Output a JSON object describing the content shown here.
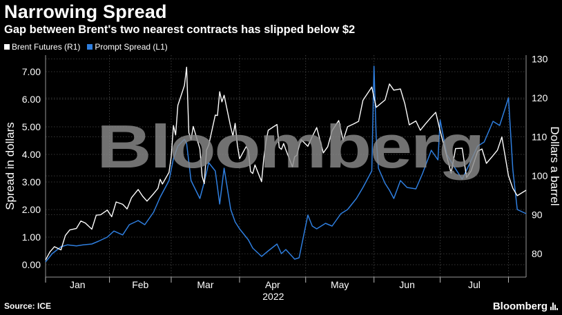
{
  "header": {
    "title": "Narrowing Spread",
    "subtitle": "Gap between Brent's two nearest contracts has slipped below $2"
  },
  "footer": {
    "source": "Source: ICE",
    "brand": "Bloomberg"
  },
  "colors": {
    "background": "#000000",
    "brent": "#ffffff",
    "spread": "#2f7fe0",
    "grid": "#4a4a4a",
    "watermark": "#8a8a8a"
  },
  "icons": {
    "brand": "bar-chart-icon"
  },
  "chart_data": {
    "type": "line",
    "watermark": "Bloomberg",
    "legend_placement": "top-left",
    "grid": true,
    "x_axis": {
      "ticks": [
        "Jan",
        "Feb",
        "Mar",
        "Apr",
        "May",
        "Jun",
        "Jul"
      ],
      "year_label": "2022",
      "range": [
        "2022-01-03",
        "2022-08-09"
      ]
    },
    "y_left": {
      "label": "Spread in dollars",
      "ticks": [
        "0.00",
        "1.00",
        "2.00",
        "3.00",
        "4.00",
        "5.00",
        "6.00",
        "7.00"
      ],
      "range": [
        -0.45,
        7.6
      ]
    },
    "y_right": {
      "label": "Dollars a barrel",
      "ticks": [
        "80",
        "90",
        "100",
        "110",
        "120",
        "130"
      ],
      "range": [
        74,
        131
      ]
    },
    "series": [
      {
        "name": "Brent Futures (R1)",
        "axis": "right",
        "points": [
          [
            "2022-01-03",
            78.4
          ],
          [
            "2022-01-05",
            80.5
          ],
          [
            "2022-01-07",
            81.8
          ],
          [
            "2022-01-10",
            81.0
          ],
          [
            "2022-01-12",
            84.7
          ],
          [
            "2022-01-14",
            86.1
          ],
          [
            "2022-01-17",
            86.5
          ],
          [
            "2022-01-19",
            88.4
          ],
          [
            "2022-01-21",
            87.9
          ],
          [
            "2022-01-24",
            86.3
          ],
          [
            "2022-01-26",
            89.9
          ],
          [
            "2022-01-28",
            90.0
          ],
          [
            "2022-01-31",
            91.2
          ],
          [
            "2022-02-02",
            89.5
          ],
          [
            "2022-02-04",
            93.3
          ],
          [
            "2022-02-07",
            92.7
          ],
          [
            "2022-02-09",
            91.5
          ],
          [
            "2022-02-11",
            94.4
          ],
          [
            "2022-02-14",
            96.5
          ],
          [
            "2022-02-16",
            94.8
          ],
          [
            "2022-02-18",
            93.5
          ],
          [
            "2022-02-21",
            95.4
          ],
          [
            "2022-02-23",
            96.8
          ],
          [
            "2022-02-24",
            99.1
          ],
          [
            "2022-02-25",
            97.9
          ],
          [
            "2022-02-28",
            100.9
          ],
          [
            "2022-03-01",
            104.9
          ],
          [
            "2022-03-02",
            112.9
          ],
          [
            "2022-03-03",
            110.5
          ],
          [
            "2022-03-04",
            118.1
          ],
          [
            "2022-03-07",
            123.2
          ],
          [
            "2022-03-08",
            127.9
          ],
          [
            "2022-03-09",
            111.1
          ],
          [
            "2022-03-10",
            109.3
          ],
          [
            "2022-03-11",
            112.7
          ],
          [
            "2022-03-14",
            106.9
          ],
          [
            "2022-03-15",
            99.9
          ],
          [
            "2022-03-16",
            98.0
          ],
          [
            "2022-03-17",
            106.6
          ],
          [
            "2022-03-18",
            107.9
          ],
          [
            "2022-03-21",
            115.6
          ],
          [
            "2022-03-22",
            115.5
          ],
          [
            "2022-03-23",
            121.6
          ],
          [
            "2022-03-24",
            119.0
          ],
          [
            "2022-03-25",
            120.7
          ],
          [
            "2022-03-28",
            112.5
          ],
          [
            "2022-03-29",
            110.2
          ],
          [
            "2022-03-30",
            113.5
          ],
          [
            "2022-03-31",
            107.9
          ],
          [
            "2022-04-01",
            104.4
          ],
          [
            "2022-04-04",
            107.5
          ],
          [
            "2022-04-05",
            106.6
          ],
          [
            "2022-04-06",
            101.1
          ],
          [
            "2022-04-07",
            100.6
          ],
          [
            "2022-04-08",
            102.8
          ],
          [
            "2022-04-11",
            98.5
          ],
          [
            "2022-04-12",
            104.6
          ],
          [
            "2022-04-13",
            108.8
          ],
          [
            "2022-04-14",
            111.7
          ],
          [
            "2022-04-18",
            113.2
          ],
          [
            "2022-04-19",
            107.3
          ],
          [
            "2022-04-20",
            106.8
          ],
          [
            "2022-04-21",
            108.3
          ],
          [
            "2022-04-22",
            106.7
          ],
          [
            "2022-04-25",
            102.3
          ],
          [
            "2022-04-26",
            104.9
          ],
          [
            "2022-04-27",
            105.3
          ],
          [
            "2022-04-28",
            107.6
          ],
          [
            "2022-04-29",
            109.3
          ],
          [
            "2022-05-02",
            107.6
          ],
          [
            "2022-05-04",
            110.1
          ],
          [
            "2022-05-06",
            112.4
          ],
          [
            "2022-05-09",
            105.9
          ],
          [
            "2022-05-11",
            107.5
          ],
          [
            "2022-05-13",
            111.6
          ],
          [
            "2022-05-16",
            114.2
          ],
          [
            "2022-05-18",
            109.1
          ],
          [
            "2022-05-20",
            112.6
          ],
          [
            "2022-05-23",
            113.4
          ],
          [
            "2022-05-25",
            114.0
          ],
          [
            "2022-05-27",
            119.4
          ],
          [
            "2022-05-31",
            122.8
          ],
          [
            "2022-06-02",
            117.6
          ],
          [
            "2022-06-06",
            119.5
          ],
          [
            "2022-06-08",
            123.6
          ],
          [
            "2022-06-10",
            122.0
          ],
          [
            "2022-06-13",
            122.3
          ],
          [
            "2022-06-15",
            118.5
          ],
          [
            "2022-06-17",
            113.1
          ],
          [
            "2022-06-20",
            114.1
          ],
          [
            "2022-06-22",
            111.7
          ],
          [
            "2022-06-24",
            113.1
          ],
          [
            "2022-06-27",
            115.1
          ],
          [
            "2022-06-29",
            116.3
          ],
          [
            "2022-07-01",
            111.6
          ],
          [
            "2022-07-05",
            102.8
          ],
          [
            "2022-07-06",
            100.7
          ],
          [
            "2022-07-08",
            107.0
          ],
          [
            "2022-07-11",
            107.1
          ],
          [
            "2022-07-13",
            99.6
          ],
          [
            "2022-07-15",
            101.2
          ],
          [
            "2022-07-18",
            106.3
          ],
          [
            "2022-07-20",
            106.9
          ],
          [
            "2022-07-22",
            103.2
          ],
          [
            "2022-07-25",
            105.2
          ],
          [
            "2022-07-27",
            106.6
          ],
          [
            "2022-07-29",
            110.0
          ],
          [
            "2022-08-01",
            100.0
          ],
          [
            "2022-08-03",
            96.8
          ],
          [
            "2022-08-05",
            94.9
          ],
          [
            "2022-08-09",
            96.3
          ]
        ]
      },
      {
        "name": "Prompt Spread (L1)",
        "axis": "left",
        "points": [
          [
            "2022-01-03",
            0.1
          ],
          [
            "2022-01-06",
            0.4
          ],
          [
            "2022-01-10",
            0.65
          ],
          [
            "2022-01-13",
            0.72
          ],
          [
            "2022-01-17",
            0.68
          ],
          [
            "2022-01-20",
            0.72
          ],
          [
            "2022-01-24",
            0.75
          ],
          [
            "2022-01-27",
            0.85
          ],
          [
            "2022-01-31",
            1.0
          ],
          [
            "2022-02-03",
            1.22
          ],
          [
            "2022-02-07",
            1.08
          ],
          [
            "2022-02-10",
            1.45
          ],
          [
            "2022-02-14",
            1.6
          ],
          [
            "2022-02-17",
            1.45
          ],
          [
            "2022-02-21",
            1.9
          ],
          [
            "2022-02-24",
            2.45
          ],
          [
            "2022-02-28",
            3.05
          ],
          [
            "2022-03-02",
            3.85
          ],
          [
            "2022-03-04",
            4.3
          ],
          [
            "2022-03-07",
            4.55
          ],
          [
            "2022-03-08",
            4.4
          ],
          [
            "2022-03-10",
            3.05
          ],
          [
            "2022-03-14",
            2.4
          ],
          [
            "2022-03-16",
            3.0
          ],
          [
            "2022-03-18",
            3.7
          ],
          [
            "2022-03-21",
            3.4
          ],
          [
            "2022-03-23",
            2.2
          ],
          [
            "2022-03-25",
            3.5
          ],
          [
            "2022-03-28",
            2.0
          ],
          [
            "2022-03-30",
            1.55
          ],
          [
            "2022-04-01",
            1.3
          ],
          [
            "2022-04-05",
            0.9
          ],
          [
            "2022-04-07",
            0.6
          ],
          [
            "2022-04-11",
            0.3
          ],
          [
            "2022-04-14",
            0.5
          ],
          [
            "2022-04-18",
            0.75
          ],
          [
            "2022-04-20",
            0.4
          ],
          [
            "2022-04-22",
            0.55
          ],
          [
            "2022-04-26",
            0.2
          ],
          [
            "2022-04-28",
            0.25
          ],
          [
            "2022-05-02",
            1.8
          ],
          [
            "2022-05-04",
            1.4
          ],
          [
            "2022-05-06",
            1.3
          ],
          [
            "2022-05-10",
            1.5
          ],
          [
            "2022-05-13",
            1.4
          ],
          [
            "2022-05-17",
            1.85
          ],
          [
            "2022-05-20",
            2.0
          ],
          [
            "2022-05-24",
            2.4
          ],
          [
            "2022-05-27",
            2.8
          ],
          [
            "2022-05-31",
            3.4
          ],
          [
            "2022-06-01",
            7.2
          ],
          [
            "2022-06-02",
            4.6
          ],
          [
            "2022-06-03",
            3.5
          ],
          [
            "2022-06-06",
            2.95
          ],
          [
            "2022-06-08",
            2.7
          ],
          [
            "2022-06-10",
            2.4
          ],
          [
            "2022-06-13",
            3.05
          ],
          [
            "2022-06-16",
            2.8
          ],
          [
            "2022-06-20",
            2.75
          ],
          [
            "2022-06-23",
            3.3
          ],
          [
            "2022-06-27",
            4.15
          ],
          [
            "2022-06-30",
            3.8
          ],
          [
            "2022-07-01",
            5.25
          ],
          [
            "2022-07-04",
            4.0
          ],
          [
            "2022-07-07",
            3.6
          ],
          [
            "2022-07-11",
            3.1
          ],
          [
            "2022-07-14",
            3.6
          ],
          [
            "2022-07-18",
            4.3
          ],
          [
            "2022-07-21",
            4.45
          ],
          [
            "2022-07-25",
            5.2
          ],
          [
            "2022-07-28",
            5.05
          ],
          [
            "2022-08-01",
            6.05
          ],
          [
            "2022-08-03",
            3.45
          ],
          [
            "2022-08-05",
            2.0
          ],
          [
            "2022-08-09",
            1.85
          ]
        ]
      }
    ]
  }
}
